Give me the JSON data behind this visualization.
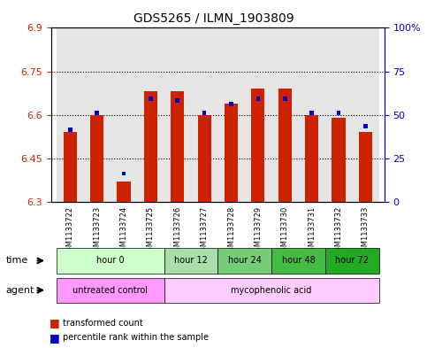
{
  "title": "GDS5265 / ILMN_1903809",
  "samples": [
    "GSM1133722",
    "GSM1133723",
    "GSM1133724",
    "GSM1133725",
    "GSM1133726",
    "GSM1133727",
    "GSM1133728",
    "GSM1133729",
    "GSM1133730",
    "GSM1133731",
    "GSM1133732",
    "GSM1133733"
  ],
  "transformed_count": [
    6.54,
    6.6,
    6.37,
    6.68,
    6.68,
    6.6,
    6.64,
    6.69,
    6.69,
    6.6,
    6.59,
    6.54
  ],
  "percentile_rank": [
    40,
    50,
    15,
    58,
    57,
    50,
    55,
    58,
    58,
    50,
    50,
    42
  ],
  "y_min": 6.3,
  "y_max": 6.9,
  "y_ticks": [
    6.3,
    6.45,
    6.6,
    6.75,
    6.9
  ],
  "y2_ticks": [
    0,
    25,
    50,
    75,
    100
  ],
  "y2_tick_labels": [
    "0",
    "25",
    "50",
    "75",
    "100%"
  ],
  "time_groups": [
    {
      "label": "hour 0",
      "start": 0,
      "end": 3,
      "color": "#ccffcc"
    },
    {
      "label": "hour 12",
      "start": 4,
      "end": 5,
      "color": "#aaddaa"
    },
    {
      "label": "hour 24",
      "start": 6,
      "end": 7,
      "color": "#77cc77"
    },
    {
      "label": "hour 48",
      "start": 8,
      "end": 9,
      "color": "#44bb44"
    },
    {
      "label": "hour 72",
      "start": 10,
      "end": 11,
      "color": "#22aa22"
    }
  ],
  "agent_groups": [
    {
      "label": "untreated control",
      "start": 0,
      "end": 3,
      "color": "#ff99ff"
    },
    {
      "label": "mycophenolic acid",
      "start": 4,
      "end": 11,
      "color": "#ffccff"
    }
  ],
  "bar_color": "#cc2200",
  "blue_color": "#0000cc",
  "sample_bg": "#cccccc",
  "left_label_color": "#cc2200",
  "right_label_color": "#0000cc",
  "legend": [
    {
      "color": "#cc2200",
      "label": "transformed count"
    },
    {
      "color": "#0000cc",
      "label": "percentile rank within the sample"
    }
  ]
}
